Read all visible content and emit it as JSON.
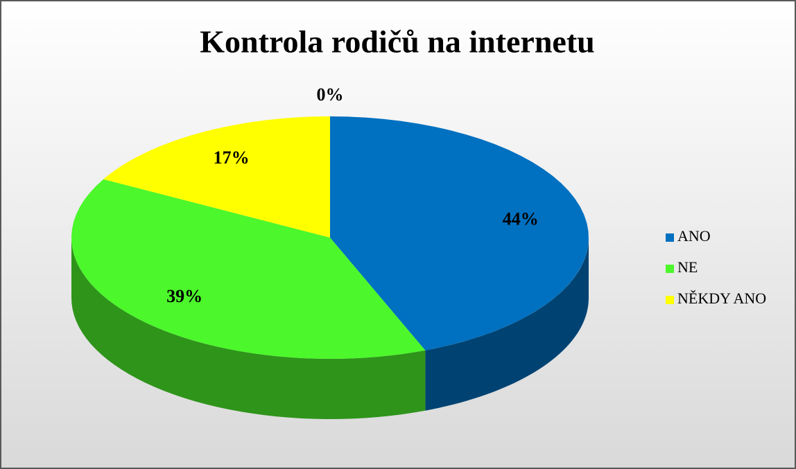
{
  "chart_data": {
    "type": "pie",
    "title": "Kontrola rodičů na internetu",
    "categories": [
      "ANO",
      "NE",
      "NĚKDY ANO",
      null
    ],
    "values": [
      44,
      39,
      17,
      0
    ],
    "value_labels": [
      "44%",
      "39%",
      "17%",
      "0%"
    ],
    "colors": [
      "#0070c0",
      "#4cf72b",
      "#ffff00",
      "#a5a5a5"
    ],
    "legend": "right"
  }
}
